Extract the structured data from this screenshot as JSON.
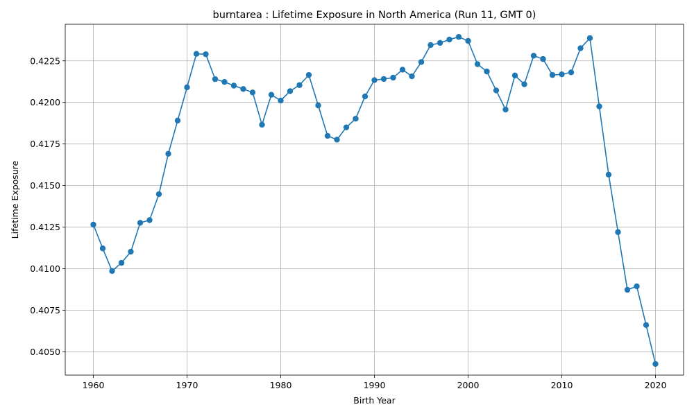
{
  "chart_data": {
    "type": "line",
    "title": "burntarea : Lifetime Exposure in North America (Run 11, GMT 0)",
    "xlabel": "Birth Year",
    "ylabel": "Lifetime Exposure",
    "xlim": [
      1957.0,
      2023.0
    ],
    "ylim": [
      0.4036,
      0.4247
    ],
    "xticks": [
      1960,
      1970,
      1980,
      1990,
      2000,
      2010,
      2020
    ],
    "xtick_labels": [
      "1960",
      "1970",
      "1980",
      "1990",
      "2000",
      "2010",
      "2020"
    ],
    "yticks": [
      0.405,
      0.4075,
      0.41,
      0.4125,
      0.415,
      0.4175,
      0.42,
      0.4225
    ],
    "ytick_labels": [
      "0.4050",
      "0.4075",
      "0.4100",
      "0.4125",
      "0.4150",
      "0.4175",
      "0.4200",
      "0.4225"
    ],
    "grid": true,
    "color": "#1f77b4",
    "series": [
      {
        "x": [
          1960,
          1961,
          1962,
          1963,
          1964,
          1965,
          1966,
          1967,
          1968,
          1969,
          1970,
          1971,
          1972,
          1973,
          1974,
          1975,
          1976,
          1977,
          1978,
          1979,
          1980,
          1981,
          1982,
          1983,
          1984,
          1985,
          1986,
          1987,
          1988,
          1989,
          1990,
          1991,
          1992,
          1993,
          1994,
          1995,
          1996,
          1997,
          1998,
          1999,
          2000,
          2001,
          2002,
          2003,
          2004,
          2005,
          2006,
          2007,
          2008,
          2009,
          2010,
          2011,
          2012,
          2013,
          2014,
          2015,
          2016,
          2017,
          2018,
          2019,
          2020
        ],
        "values": [
          0.41265,
          0.41122,
          0.40986,
          0.41035,
          0.41102,
          0.41276,
          0.41292,
          0.41448,
          0.41691,
          0.41891,
          0.42091,
          0.42292,
          0.4229,
          0.4214,
          0.42123,
          0.42101,
          0.42081,
          0.4206,
          0.41866,
          0.42046,
          0.42011,
          0.42068,
          0.42104,
          0.42165,
          0.41982,
          0.41799,
          0.41776,
          0.4185,
          0.41902,
          0.42036,
          0.42134,
          0.42141,
          0.42149,
          0.42197,
          0.42157,
          0.42243,
          0.42345,
          0.42358,
          0.42378,
          0.42394,
          0.4237,
          0.4223,
          0.42186,
          0.42072,
          0.41957,
          0.42162,
          0.42109,
          0.42281,
          0.42261,
          0.42165,
          0.42169,
          0.42181,
          0.42326,
          0.42387,
          0.41976,
          0.41566,
          0.4122,
          0.40873,
          0.40894,
          0.40661,
          0.40427
        ]
      }
    ]
  }
}
